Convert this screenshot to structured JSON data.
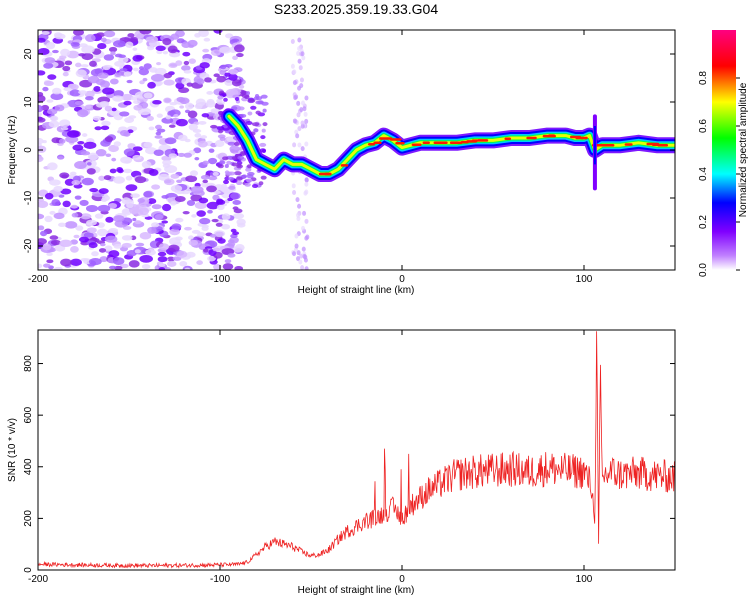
{
  "title": "S233.2025.359.19.33.G04",
  "chart_data": [
    {
      "type": "heatmap",
      "xlabel": "Height of straight line (km)",
      "ylabel": "Frequency (Hz)",
      "xlim": [
        -200,
        150
      ],
      "ylim": [
        -25,
        25
      ],
      "xticks": [
        -200,
        -100,
        0,
        100
      ],
      "yticks": [
        -20,
        -10,
        0,
        10,
        20
      ],
      "colorbar": {
        "label": "Normalized spectral amplitude",
        "range": [
          0,
          1
        ],
        "ticks": [
          "0.0",
          "0.2",
          "0.4",
          "0.6",
          "0.8"
        ],
        "colors": [
          "#ffffff",
          "#a000ff",
          "#0000ff",
          "#00ffff",
          "#00ff00",
          "#ffff00",
          "#ff0000",
          "#ff0080"
        ]
      },
      "ridge": {
        "x": [
          -95,
          -90,
          -85,
          -80,
          -75,
          -70,
          -65,
          -60,
          -55,
          -50,
          -45,
          -40,
          -35,
          -30,
          -25,
          -20,
          -15,
          -10,
          -5,
          0,
          5,
          10,
          20,
          30,
          40,
          50,
          60,
          70,
          80,
          90,
          95,
          100,
          103,
          106,
          110,
          120,
          130,
          140,
          150
        ],
        "y": [
          7,
          5,
          2,
          -2,
          -3,
          -4,
          -2,
          -3,
          -3,
          -4,
          -5,
          -5,
          -4,
          -2,
          0,
          1,
          1.5,
          3,
          2,
          0.5,
          1,
          1.5,
          1.5,
          1.5,
          2,
          2,
          2.5,
          2.5,
          3,
          3,
          2.5,
          2.5,
          3,
          0,
          1,
          1,
          1.5,
          1,
          1
        ]
      }
    },
    {
      "type": "line",
      "xlabel": "Height of straight line (km)",
      "ylabel": "SNR (10 * v/v)",
      "xlim": [
        -200,
        150
      ],
      "ylim": [
        0,
        930
      ],
      "xticks": [
        -200,
        -100,
        0,
        100
      ],
      "yticks": [
        0,
        200,
        400,
        600,
        800
      ],
      "series": [
        {
          "name": "SNR",
          "color": "#ee2222",
          "x": [
            -200,
            -180,
            -160,
            -140,
            -120,
            -100,
            -90,
            -85,
            -80,
            -75,
            -70,
            -65,
            -60,
            -55,
            -50,
            -45,
            -40,
            -35,
            -30,
            -25,
            -20,
            -15,
            -10,
            -5,
            0,
            5,
            10,
            15,
            20,
            25,
            30,
            40,
            50,
            60,
            70,
            80,
            90,
            100,
            104,
            106,
            107,
            108,
            109,
            110,
            115,
            120,
            130,
            140,
            150
          ],
          "values": [
            22,
            20,
            18,
            17,
            18,
            20,
            22,
            30,
            60,
            90,
            110,
            100,
            90,
            70,
            55,
            60,
            80,
            120,
            150,
            170,
            190,
            200,
            220,
            240,
            200,
            250,
            280,
            310,
            330,
            350,
            370,
            380,
            385,
            390,
            380,
            395,
            385,
            380,
            330,
            180,
            930,
            100,
            780,
            360,
            380,
            370,
            375,
            365,
            360
          ]
        }
      ]
    }
  ]
}
